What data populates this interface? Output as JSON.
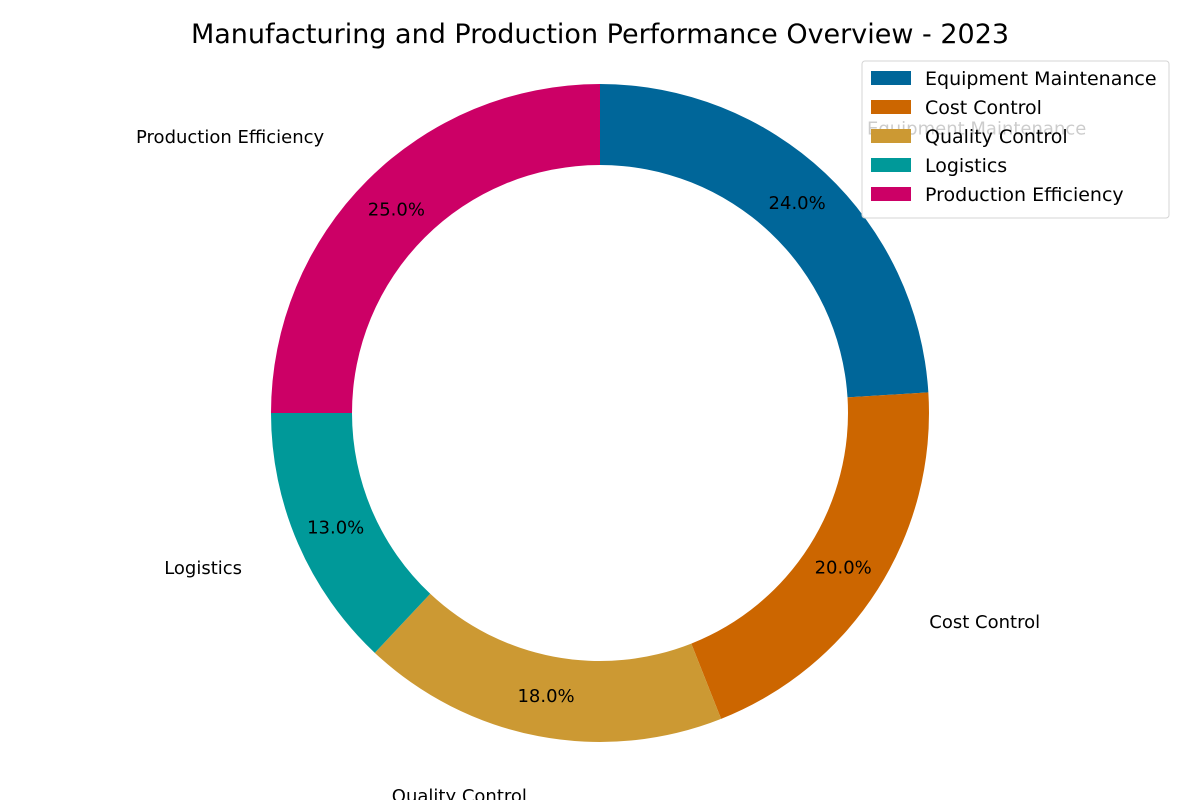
{
  "chart_data": {
    "type": "pie",
    "style": "donut",
    "title": "Manufacturing and Production Performance Overview - 2023",
    "categories": [
      "Equipment Maintenance",
      "Cost Control",
      "Quality Control",
      "Logistics",
      "Production Efficiency"
    ],
    "values": [
      24.0,
      20.0,
      18.0,
      13.0,
      25.0
    ],
    "percent_labels": [
      "24.0%",
      "20.0%",
      "18.0%",
      "13.0%",
      "25.0%"
    ],
    "colors": [
      "#006699",
      "#cc6600",
      "#cc9933",
      "#009999",
      "#cc0066"
    ],
    "legend": {
      "placement": "top-right",
      "entries": [
        "Equipment Maintenance",
        "Cost Control",
        "Quality Control",
        "Logistics",
        "Production Efficiency"
      ]
    },
    "start_angle": "12 o'clock",
    "direction": "clockwise"
  }
}
